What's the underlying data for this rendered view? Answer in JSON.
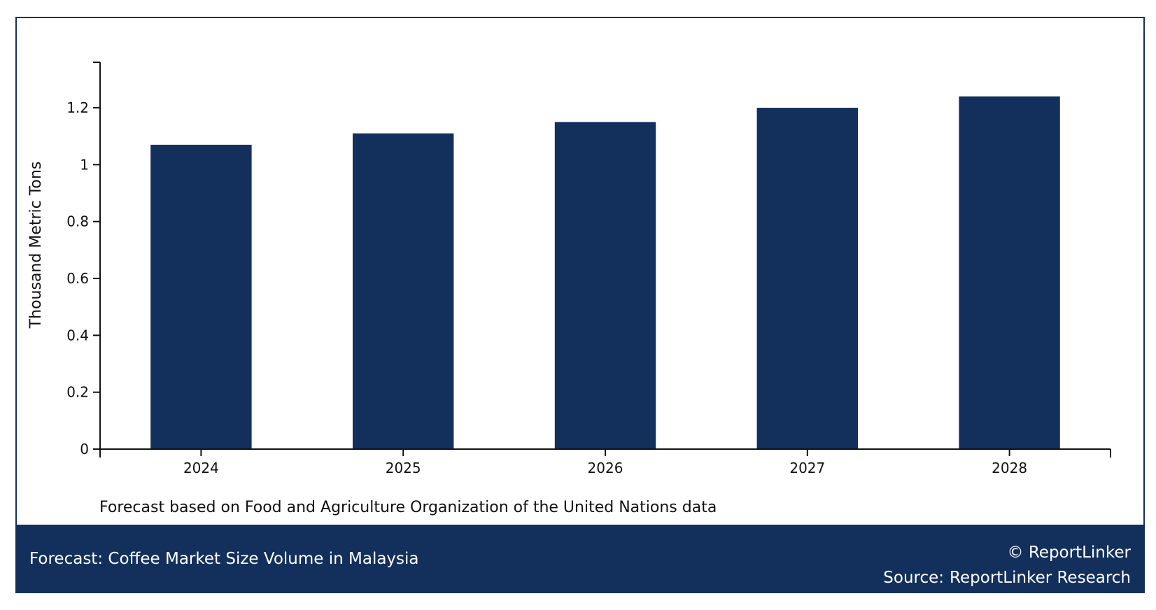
{
  "chart_data": {
    "type": "bar",
    "categories": [
      "2024",
      "2025",
      "2026",
      "2027",
      "2028"
    ],
    "values": [
      1.07,
      1.11,
      1.15,
      1.2,
      1.24
    ],
    "ylabel": "Thousand Metric Tons",
    "xlabel": "",
    "ylim": [
      0,
      1.36
    ],
    "yticks": [
      0,
      0.2,
      0.4,
      0.6,
      0.8,
      1,
      1.2
    ],
    "ytick_labels": [
      "0",
      "0.2",
      "0.4",
      "0.6",
      "0.8",
      "1",
      "1.2"
    ],
    "grid": false,
    "legend": "none",
    "bar_color": "#13305c"
  },
  "note": "Forecast based on Food and Agriculture Organization of the United Nations data",
  "footer": {
    "title": "Forecast: Coffee Market Size Volume in Malaysia",
    "copyright": "© ReportLinker",
    "source_label": "Source:",
    "source_value": "ReportLinker Research"
  },
  "colors": {
    "brand": "#13305c",
    "background": "#ffffff"
  }
}
